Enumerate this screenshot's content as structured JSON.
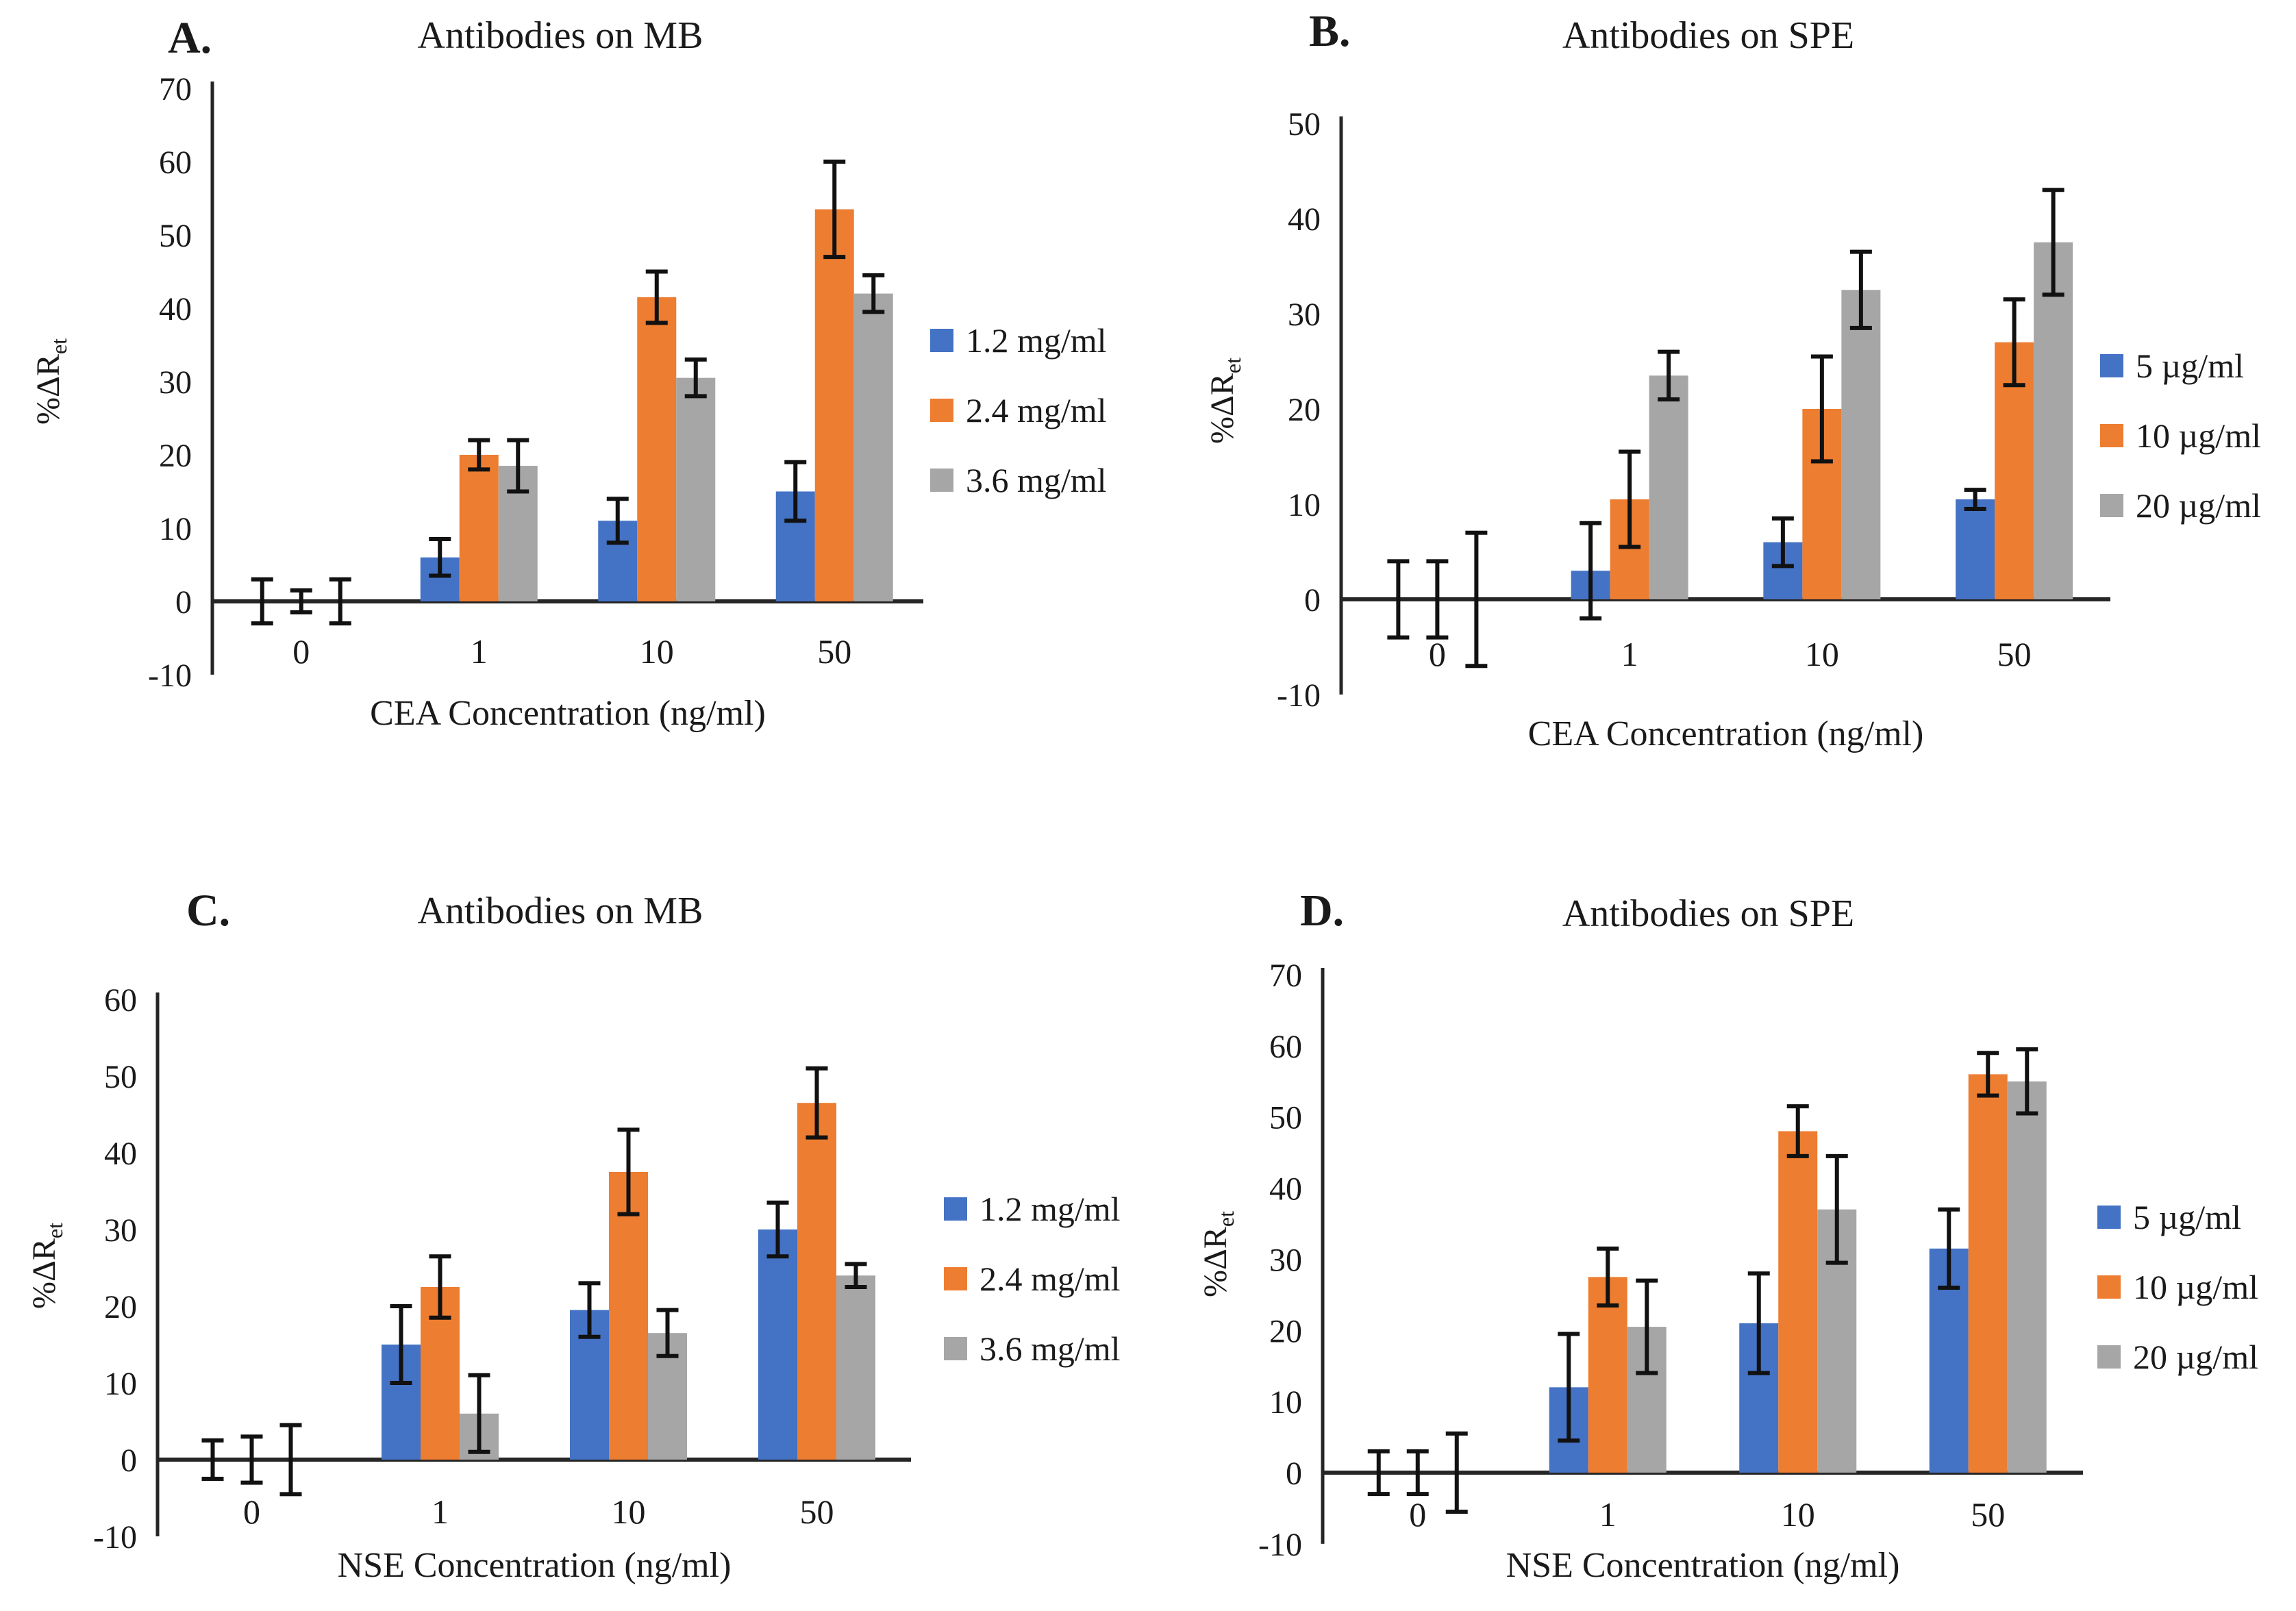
{
  "figure": {
    "background": "#ffffff",
    "error_bar_color": "#111111",
    "axis_color": "#262626"
  },
  "chart_data": [
    {
      "id": "A",
      "type": "bar",
      "panel_label": "A.",
      "title": "Antibodies on MB",
      "xlabel": "CEA Concentration (ng/ml)",
      "ylabel": "%ΔR",
      "ylabel_sub": "et",
      "categories": [
        "0",
        "1",
        "10",
        "50"
      ],
      "ylim": [
        -10,
        70
      ],
      "ytick_step": 10,
      "grid": false,
      "legend_position": "right",
      "series": [
        {
          "name": "1.2 mg/ml",
          "color": "#4472C4",
          "values": [
            0,
            6,
            11,
            15
          ],
          "errors": [
            3,
            2.5,
            3,
            4
          ]
        },
        {
          "name": "2.4 mg/ml",
          "color": "#ED7D31",
          "values": [
            0,
            20,
            41.5,
            53.5
          ],
          "errors": [
            1.5,
            2,
            3.5,
            6.5
          ]
        },
        {
          "name": "3.6 mg/ml",
          "color": "#A6A6A6",
          "values": [
            0,
            18.5,
            30.5,
            42
          ],
          "errors": [
            3,
            3.5,
            2.5,
            2.5
          ]
        }
      ]
    },
    {
      "id": "B",
      "type": "bar",
      "panel_label": "B.",
      "title": "Antibodies on SPE",
      "xlabel": "CEA Concentration (ng/ml)",
      "ylabel": "%ΔR",
      "ylabel_sub": "et",
      "categories": [
        "0",
        "1",
        "10",
        "50"
      ],
      "ylim": [
        -10,
        50
      ],
      "ytick_step": 10,
      "grid": false,
      "legend_position": "right",
      "series": [
        {
          "name": "5 µg/ml",
          "color": "#4472C4",
          "values": [
            0,
            3,
            6,
            10.5
          ],
          "errors": [
            4,
            5,
            2.5,
            1
          ]
        },
        {
          "name": "10 µg/ml",
          "color": "#ED7D31",
          "values": [
            0,
            10.5,
            20,
            27
          ],
          "errors": [
            4,
            5,
            5.5,
            4.5
          ]
        },
        {
          "name": "20 µg/ml",
          "color": "#A6A6A6",
          "values": [
            0,
            23.5,
            32.5,
            37.5
          ],
          "errors": [
            7,
            2.5,
            4,
            5.5
          ]
        }
      ]
    },
    {
      "id": "C",
      "type": "bar",
      "panel_label": "C.",
      "title": "Antibodies on MB",
      "xlabel": "NSE Concentration (ng/ml)",
      "ylabel": "%ΔR",
      "ylabel_sub": "et",
      "categories": [
        "0",
        "1",
        "10",
        "50"
      ],
      "ylim": [
        -10,
        60
      ],
      "ytick_step": 10,
      "grid": false,
      "legend_position": "right",
      "series": [
        {
          "name": "1.2 mg/ml",
          "color": "#4472C4",
          "values": [
            0,
            15,
            19.5,
            30
          ],
          "errors": [
            2.5,
            5,
            3.5,
            3.5
          ]
        },
        {
          "name": "2.4 mg/ml",
          "color": "#ED7D31",
          "values": [
            0,
            22.5,
            37.5,
            46.5
          ],
          "errors": [
            3,
            4,
            5.5,
            4.5
          ]
        },
        {
          "name": "3.6 mg/ml",
          "color": "#A6A6A6",
          "values": [
            0,
            6,
            16.5,
            24
          ],
          "errors": [
            4.5,
            5,
            3,
            1.5
          ]
        }
      ]
    },
    {
      "id": "D",
      "type": "bar",
      "panel_label": "D.",
      "title": "Antibodies on SPE",
      "xlabel": "NSE Concentration (ng/ml)",
      "ylabel": "%ΔR",
      "ylabel_sub": "et",
      "categories": [
        "0",
        "1",
        "10",
        "50"
      ],
      "ylim": [
        -10,
        70
      ],
      "ytick_step": 10,
      "grid": false,
      "legend_position": "right",
      "series": [
        {
          "name": "5 µg/ml",
          "color": "#4472C4",
          "values": [
            0,
            12,
            21,
            31.5
          ],
          "errors": [
            3,
            7.5,
            7,
            5.5
          ]
        },
        {
          "name": "10 µg/ml",
          "color": "#ED7D31",
          "values": [
            0,
            27.5,
            48,
            56
          ],
          "errors": [
            3,
            4,
            3.5,
            3
          ]
        },
        {
          "name": "20 µg/ml",
          "color": "#A6A6A6",
          "values": [
            0,
            20.5,
            37,
            55
          ],
          "errors": [
            5.5,
            6.5,
            7.5,
            4.5
          ]
        }
      ]
    }
  ]
}
